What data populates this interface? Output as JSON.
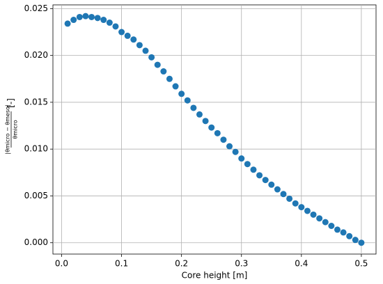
{
  "chart_data": {
    "type": "scatter",
    "xlabel": "Core height [m]",
    "ylabel": {
      "numerator": "|θmicro − θmeso|",
      "denominator": "θmicro",
      "unit": "[-]"
    },
    "color": "#1f77b4",
    "grid": true,
    "x": [
      0.01,
      0.02,
      0.03,
      0.04,
      0.05,
      0.06,
      0.07,
      0.08,
      0.09,
      0.1,
      0.11,
      0.12,
      0.13,
      0.14,
      0.15,
      0.16,
      0.17,
      0.18,
      0.19,
      0.2,
      0.21,
      0.22,
      0.23,
      0.24,
      0.25,
      0.26,
      0.27,
      0.28,
      0.29,
      0.3,
      0.31,
      0.32,
      0.33,
      0.34,
      0.35,
      0.36,
      0.37,
      0.38,
      0.39,
      0.4,
      0.41,
      0.42,
      0.43,
      0.44,
      0.45,
      0.46,
      0.47,
      0.48,
      0.49,
      0.5
    ],
    "values": [
      0.0234,
      0.0238,
      0.0241,
      0.0242,
      0.0241,
      0.024,
      0.0238,
      0.0235,
      0.0231,
      0.0225,
      0.0221,
      0.0217,
      0.0211,
      0.0205,
      0.0198,
      0.019,
      0.0183,
      0.0175,
      0.0167,
      0.0159,
      0.0152,
      0.0144,
      0.0137,
      0.013,
      0.0123,
      0.0117,
      0.011,
      0.0103,
      0.0097,
      0.009,
      0.0084,
      0.0078,
      0.0072,
      0.0067,
      0.0062,
      0.0057,
      0.0052,
      0.0047,
      0.0042,
      0.0038,
      0.0034,
      0.003,
      0.0026,
      0.0022,
      0.0018,
      0.0014,
      0.0011,
      0.0007,
      0.0003,
      0.0
    ],
    "xlim": [
      -0.0145,
      0.5245
    ],
    "ylim": [
      -0.00121,
      0.0254
    ],
    "xticks": [
      {
        "value": 0,
        "label": "0.0"
      },
      0.1,
      0.2,
      0.3,
      0.4,
      0.5
    ],
    "yticks": [
      {
        "value": 0,
        "label": "0.000"
      },
      {
        "value": 0.005,
        "label": "0.005"
      },
      {
        "value": 0.01,
        "label": "0.010"
      },
      {
        "value": 0.015,
        "label": "0.015"
      },
      {
        "value": 0.02,
        "label": "0.020"
      },
      {
        "value": 0.025,
        "label": "0.025"
      }
    ]
  }
}
